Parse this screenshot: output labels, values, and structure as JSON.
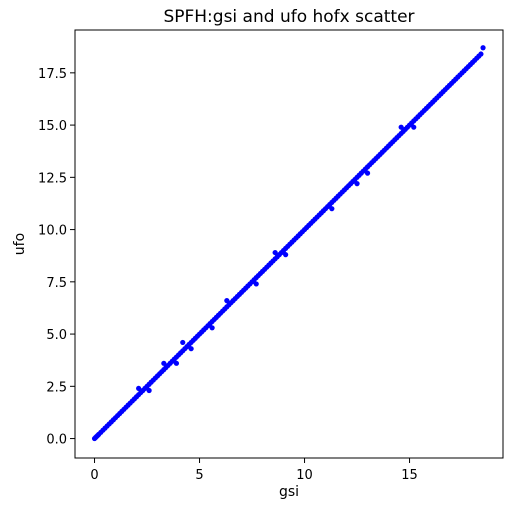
{
  "chart_data": {
    "type": "scatter",
    "title": "SPFH:gsi and ufo hofx scatter",
    "xlabel": "gsi",
    "ylabel": "ufo",
    "xlim": [
      -0.93,
      19.45
    ],
    "ylim": [
      -0.93,
      19.55
    ],
    "xticks": [
      0,
      5,
      10,
      15
    ],
    "xtick_labels": [
      "0",
      "5",
      "10",
      "15"
    ],
    "yticks": [
      0.0,
      2.5,
      5.0,
      7.5,
      10.0,
      12.5,
      15.0,
      17.5
    ],
    "ytick_labels": [
      "0.0",
      "2.5",
      "5.0",
      "7.5",
      "10.0",
      "12.5",
      "15.0",
      "17.5"
    ],
    "grid": false,
    "legend": "none",
    "marker_color": "#0000ff",
    "series": [
      {
        "x": [
          0.0,
          0.05,
          0.1,
          0.15,
          0.2,
          0.3,
          0.4,
          0.5,
          0.6,
          0.7,
          0.8,
          0.9,
          1.0,
          1.1,
          1.2,
          1.3,
          1.4,
          1.5,
          1.6,
          1.7,
          1.8,
          1.9,
          2.0,
          2.1,
          2.2,
          2.3,
          2.4,
          2.5,
          2.6,
          2.7,
          2.8,
          2.9,
          3.0,
          3.1,
          3.2,
          3.3,
          3.4,
          3.5,
          3.6,
          3.7,
          3.8,
          3.9,
          4.0,
          4.1,
          4.2,
          4.3,
          4.4,
          4.5,
          4.6,
          4.7,
          4.8,
          4.9,
          5.0,
          5.1,
          5.2,
          5.3,
          5.4,
          5.5,
          5.6,
          5.7,
          5.8,
          5.9,
          6.0,
          6.1,
          6.2,
          6.3,
          6.4,
          6.5,
          6.6,
          6.7,
          6.8,
          6.9,
          7.0,
          7.1,
          7.2,
          7.3,
          7.4,
          7.5,
          7.6,
          7.7,
          7.8,
          7.9,
          8.0,
          8.1,
          8.2,
          8.3,
          8.4,
          8.5,
          8.6,
          8.7,
          8.8,
          8.9,
          9.0,
          9.1,
          9.2,
          9.3,
          9.4,
          9.5,
          9.6,
          9.7,
          9.8,
          9.9,
          10.0,
          10.1,
          10.2,
          10.3,
          10.4,
          10.5,
          10.6,
          10.7,
          10.8,
          10.9,
          11.0,
          11.1,
          11.2,
          11.3,
          11.4,
          11.5,
          11.6,
          11.7,
          11.8,
          11.9,
          12.0,
          12.1,
          12.2,
          12.3,
          12.4,
          12.5,
          12.6,
          12.7,
          12.8,
          12.9,
          13.0,
          13.1,
          13.2,
          13.3,
          13.4,
          13.5,
          13.6,
          13.7,
          13.8,
          13.9,
          14.0,
          14.1,
          14.2,
          14.3,
          14.4,
          14.5,
          14.6,
          14.7,
          14.8,
          14.9,
          15.0,
          15.1,
          15.2,
          15.3,
          15.4,
          15.5,
          15.6,
          15.7,
          15.8,
          15.9,
          16.0,
          16.1,
          16.2,
          16.3,
          16.4,
          16.5,
          16.6,
          16.7,
          16.8,
          16.9,
          17.0,
          17.1,
          17.2,
          17.3,
          17.4,
          17.5,
          17.6,
          17.7,
          17.8,
          17.9,
          18.0,
          18.1,
          18.2,
          18.3,
          18.4,
          18.5,
          2.1,
          2.6,
          3.3,
          3.9,
          4.2,
          4.6,
          5.6,
          6.3,
          7.7,
          8.6,
          9.1,
          11.3,
          12.5,
          13.0,
          14.6,
          15.2
        ],
        "y": [
          0.0,
          0.05,
          0.1,
          0.15,
          0.2,
          0.3,
          0.4,
          0.5,
          0.6,
          0.7,
          0.8,
          0.9,
          1.0,
          1.1,
          1.2,
          1.3,
          1.4,
          1.5,
          1.6,
          1.7,
          1.8,
          1.9,
          2.0,
          2.1,
          2.2,
          2.3,
          2.4,
          2.5,
          2.6,
          2.7,
          2.8,
          2.9,
          3.0,
          3.1,
          3.2,
          3.3,
          3.4,
          3.5,
          3.6,
          3.7,
          3.8,
          3.9,
          4.0,
          4.1,
          4.2,
          4.3,
          4.4,
          4.5,
          4.6,
          4.7,
          4.8,
          4.9,
          5.0,
          5.1,
          5.2,
          5.3,
          5.4,
          5.5,
          5.6,
          5.7,
          5.8,
          5.9,
          6.0,
          6.1,
          6.2,
          6.3,
          6.4,
          6.5,
          6.6,
          6.7,
          6.8,
          6.9,
          7.0,
          7.1,
          7.2,
          7.3,
          7.4,
          7.5,
          7.6,
          7.7,
          7.8,
          7.9,
          8.0,
          8.1,
          8.2,
          8.3,
          8.4,
          8.5,
          8.6,
          8.7,
          8.8,
          8.9,
          9.0,
          9.1,
          9.2,
          9.3,
          9.4,
          9.5,
          9.6,
          9.7,
          9.8,
          9.9,
          10.0,
          10.1,
          10.2,
          10.3,
          10.4,
          10.5,
          10.6,
          10.7,
          10.8,
          10.9,
          11.0,
          11.1,
          11.2,
          11.3,
          11.4,
          11.5,
          11.6,
          11.7,
          11.8,
          11.9,
          12.0,
          12.1,
          12.2,
          12.3,
          12.4,
          12.5,
          12.6,
          12.7,
          12.8,
          12.9,
          13.0,
          13.1,
          13.2,
          13.3,
          13.4,
          13.5,
          13.6,
          13.7,
          13.8,
          13.9,
          14.0,
          14.1,
          14.2,
          14.3,
          14.4,
          14.5,
          14.6,
          14.7,
          14.8,
          14.9,
          15.0,
          15.1,
          15.2,
          15.3,
          15.4,
          15.5,
          15.6,
          15.7,
          15.8,
          15.9,
          16.0,
          16.1,
          16.2,
          16.3,
          16.4,
          16.5,
          16.6,
          16.7,
          16.8,
          16.9,
          17.0,
          17.1,
          17.2,
          17.3,
          17.4,
          17.5,
          17.6,
          17.7,
          17.8,
          17.9,
          18.0,
          18.1,
          18.2,
          18.3,
          18.4,
          18.7,
          2.4,
          2.3,
          3.6,
          3.6,
          4.6,
          4.3,
          5.3,
          6.6,
          7.4,
          8.9,
          8.8,
          11.0,
          12.2,
          12.7,
          14.9,
          14.9
        ]
      }
    ]
  }
}
